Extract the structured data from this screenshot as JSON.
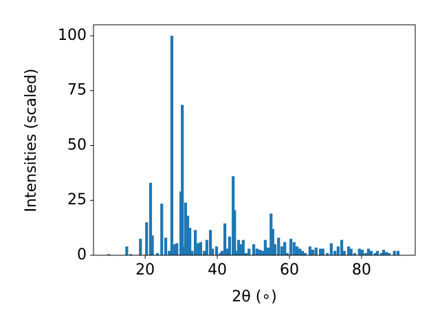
{
  "chart_data": {
    "type": "bar",
    "x_label": "2θ (∘)",
    "y_label": "Intensities (scaled)",
    "x": [
      9.9,
      14.9,
      16,
      18.7,
      20.4,
      21.5,
      22,
      23.4,
      24.6,
      25.7,
      26.7,
      27.4,
      28.2,
      28.8,
      29.9,
      30.3,
      30.7,
      31.2,
      31.8,
      32.4,
      33,
      33.9,
      34.7,
      35.4,
      36.4,
      37.1,
      38.1,
      38.7,
      39.8,
      40.8,
      41.3,
      42.1,
      42.7,
      43.4,
      44.4,
      44.8,
      45.1,
      45.9,
      46.5,
      47.2,
      48,
      48.8,
      50.1,
      51,
      51.8,
      52.6,
      53.3,
      54.1,
      54.9,
      55.4,
      56,
      57,
      57.9,
      58.7,
      59.4,
      60.4,
      61.3,
      62.1,
      62.9,
      63.6,
      64.4,
      65.7,
      66.5,
      67.4,
      68.6,
      69.3,
      70.5,
      71.6,
      72.6,
      73.5,
      74.5,
      75.2,
      76.4,
      77.1,
      78.1,
      79.4,
      80.2,
      81.1,
      81.9,
      82.7,
      83.8,
      84.4,
      85.5,
      86.1,
      86.9,
      87.6,
      89.1,
      90.1
    ],
    "values": [
      0.5,
      4,
      0.5,
      7.5,
      15,
      33,
      9,
      1,
      23.5,
      8,
      2,
      100,
      5,
      5.5,
      29,
      68.5,
      4,
      24,
      18,
      12.5,
      2,
      11.5,
      5.5,
      6,
      2,
      7,
      11.5,
      3,
      4,
      1,
      2,
      14.5,
      3,
      8.5,
      36,
      20.5,
      2,
      7,
      5,
      7,
      1,
      3,
      5,
      3,
      2.5,
      2,
      7,
      3.5,
      19,
      12,
      5,
      8,
      4,
      6,
      1,
      7.5,
      6,
      4,
      3,
      2,
      1,
      4,
      2.5,
      3.5,
      3,
      3,
      1,
      5.5,
      2,
      4,
      7,
      2,
      4,
      3,
      1,
      3,
      2.5,
      1,
      3,
      2,
      1,
      2,
      1,
      2.5,
      1.5,
      1,
      2,
      2
    ],
    "bar_width": 0.8,
    "color": "#1f77b4",
    "xlim": [
      5.68,
      94.88
    ],
    "xticks": [
      20,
      40,
      60,
      80
    ],
    "ylim": [
      0,
      105
    ],
    "yticks": [
      0,
      25,
      50,
      75,
      100
    ]
  }
}
